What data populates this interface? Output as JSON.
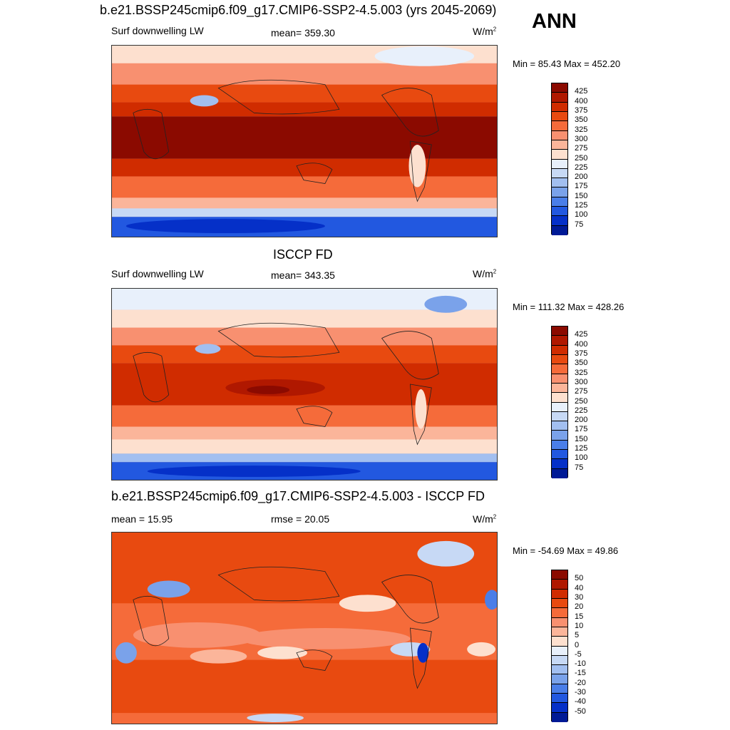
{
  "header": {
    "title": "b.e21.BSSP245cmip6.f09_g17.CMIP6-SSP2-4.5.003 (yrs 2045-2069)",
    "season": "ANN"
  },
  "panels": [
    {
      "id": "model",
      "left_label": "Surf downwelling LW",
      "center_label": "mean= 359.30",
      "units": "W/m",
      "units_sup": "2",
      "minmax": "Min =  85.43 Max = 452.20",
      "colorbar_labels": [
        "425",
        "400",
        "375",
        "350",
        "325",
        "300",
        "275",
        "250",
        "225",
        "200",
        "175",
        "150",
        "125",
        "100",
        "75"
      ]
    },
    {
      "id": "obs",
      "subtitle": "ISCCP FD",
      "left_label": "Surf downwelling LW",
      "center_label": "mean= 343.35",
      "units": "W/m",
      "units_sup": "2",
      "minmax": "Min = 111.32 Max = 428.26",
      "colorbar_labels": [
        "425",
        "400",
        "375",
        "350",
        "325",
        "300",
        "275",
        "250",
        "225",
        "200",
        "175",
        "150",
        "125",
        "100",
        "75"
      ]
    },
    {
      "id": "diff",
      "subtitle": "b.e21.BSSP245cmip6.f09_g17.CMIP6-SSP2-4.5.003 - ISCCP FD",
      "left_label": "mean =  15.95",
      "center_label": "rmse =  20.05",
      "units": "W/m",
      "units_sup": "2",
      "minmax": "Min = -54.69 Max =  49.86",
      "colorbar_labels": [
        "50",
        "40",
        "30",
        "20",
        "15",
        "10",
        "5",
        "0",
        "-5",
        "-10",
        "-15",
        "-20",
        "-30",
        "-40",
        "-50"
      ]
    }
  ],
  "colormap": [
    "#8b0a00",
    "#b01800",
    "#d02c00",
    "#e84a10",
    "#f56b3a",
    "#f89070",
    "#fbb59a",
    "#fde0cf",
    "#e8f0fb",
    "#c7d9f5",
    "#a2bff0",
    "#7aa2ea",
    "#4a7ee8",
    "#2258e0",
    "#0530c8",
    "#001a96"
  ]
}
